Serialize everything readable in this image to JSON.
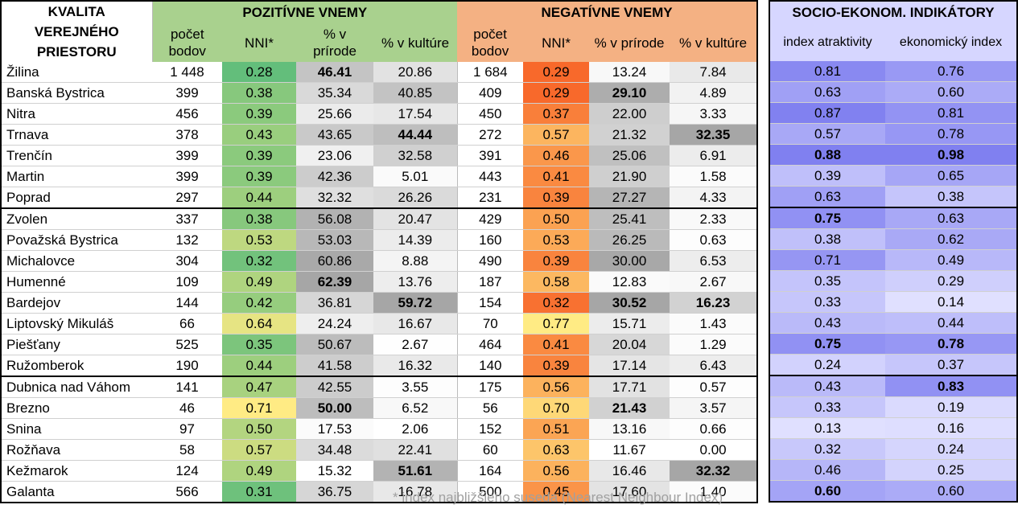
{
  "header": {
    "kvalita": [
      "KVALITA",
      "VEREJNÉHO",
      "PRIESTORU"
    ],
    "positive": "POZITÍVNE VNEMY",
    "negative": "NEGATÍVNE VNEMY",
    "socio": "SOCIO-EKONOM. INDIKÁTORY",
    "sub": {
      "count": [
        "počet",
        "bodov"
      ],
      "nni": "NNI*",
      "nature": [
        "% v",
        "prírode"
      ],
      "culture": "% v kultúre",
      "nature_inline": "% v prírode",
      "attract": "index atraktivity",
      "econ": "ekonomický index"
    }
  },
  "footnote": "* index najbližšieho suseda (Nearest Neighbour Index)",
  "rows": [
    {
      "city": "Žilina",
      "pc": "1 448",
      "pnni": "0.28",
      "pnat": "46.41",
      "pcul": "20.86",
      "nc": "1 684",
      "nnni": "0.29",
      "nnat": "13.24",
      "ncul": "7.84",
      "attr": "0.81",
      "econ": "0.76"
    },
    {
      "city": "Banská Bystrica",
      "pc": "399",
      "pnni": "0.38",
      "pnat": "35.34",
      "pcul": "40.85",
      "nc": "409",
      "nnni": "0.29",
      "nnat": "29.10",
      "ncul": "4.89",
      "attr": "0.63",
      "econ": "0.60"
    },
    {
      "city": "Nitra",
      "pc": "456",
      "pnni": "0.39",
      "pnat": "25.66",
      "pcul": "17.54",
      "nc": "450",
      "nnni": "0.37",
      "nnat": "22.00",
      "ncul": "3.33",
      "attr": "0.87",
      "econ": "0.81"
    },
    {
      "city": "Trnava",
      "pc": "378",
      "pnni": "0.43",
      "pnat": "43.65",
      "pcul": "44.44",
      "nc": "272",
      "nnni": "0.57",
      "nnat": "21.32",
      "ncul": "32.35",
      "attr": "0.57",
      "econ": "0.78"
    },
    {
      "city": "Trenčín",
      "pc": "399",
      "pnni": "0.39",
      "pnat": "23.06",
      "pcul": "32.58",
      "nc": "391",
      "nnni": "0.46",
      "nnat": "25.06",
      "ncul": "6.91",
      "attr": "0.88",
      "econ": "0.98"
    },
    {
      "city": "Martin",
      "pc": "399",
      "pnni": "0.39",
      "pnat": "42.36",
      "pcul": "5.01",
      "nc": "443",
      "nnni": "0.41",
      "nnat": "21.90",
      "ncul": "1.58",
      "attr": "0.39",
      "econ": "0.65"
    },
    {
      "city": "Poprad",
      "pc": "297",
      "pnni": "0.44",
      "pnat": "32.32",
      "pcul": "26.26",
      "nc": "231",
      "nnni": "0.39",
      "nnat": "27.27",
      "ncul": "4.33",
      "attr": "0.63",
      "econ": "0.38"
    },
    {
      "city": "Zvolen",
      "pc": "337",
      "pnni": "0.38",
      "pnat": "56.08",
      "pcul": "20.47",
      "nc": "429",
      "nnni": "0.50",
      "nnat": "25.41",
      "ncul": "2.33",
      "attr": "0.75",
      "econ": "0.63"
    },
    {
      "city": "Považská Bystrica",
      "pc": "132",
      "pnni": "0.53",
      "pnat": "53.03",
      "pcul": "14.39",
      "nc": "160",
      "nnni": "0.53",
      "nnat": "26.25",
      "ncul": "0.63",
      "attr": "0.38",
      "econ": "0.62"
    },
    {
      "city": "Michalovce",
      "pc": "304",
      "pnni": "0.32",
      "pnat": "60.86",
      "pcul": "8.88",
      "nc": "490",
      "nnni": "0.39",
      "nnat": "30.00",
      "ncul": "6.53",
      "attr": "0.71",
      "econ": "0.49"
    },
    {
      "city": "Humenné",
      "pc": "109",
      "pnni": "0.49",
      "pnat": "62.39",
      "pcul": "13.76",
      "nc": "187",
      "nnni": "0.58",
      "nnat": "12.83",
      "ncul": "2.67",
      "attr": "0.35",
      "econ": "0.29"
    },
    {
      "city": "Bardejov",
      "pc": "144",
      "pnni": "0.42",
      "pnat": "36.81",
      "pcul": "59.72",
      "nc": "154",
      "nnni": "0.32",
      "nnat": "30.52",
      "ncul": "16.23",
      "attr": "0.33",
      "econ": "0.14"
    },
    {
      "city": "Liptovský Mikuláš",
      "pc": "66",
      "pnni": "0.64",
      "pnat": "24.24",
      "pcul": "16.67",
      "nc": "70",
      "nnni": "0.77",
      "nnat": "15.71",
      "ncul": "1.43",
      "attr": "0.43",
      "econ": "0.44"
    },
    {
      "city": "Piešťany",
      "pc": "525",
      "pnni": "0.35",
      "pnat": "50.67",
      "pcul": "2.67",
      "nc": "464",
      "nnni": "0.41",
      "nnat": "20.04",
      "ncul": "1.29",
      "attr": "0.75",
      "econ": "0.78"
    },
    {
      "city": "Ružomberok",
      "pc": "190",
      "pnni": "0.44",
      "pnat": "41.58",
      "pcul": "16.32",
      "nc": "140",
      "nnni": "0.39",
      "nnat": "17.14",
      "ncul": "6.43",
      "attr": "0.24",
      "econ": "0.37"
    },
    {
      "city": "Dubnica nad Váhom",
      "pc": "141",
      "pnni": "0.47",
      "pnat": "42.55",
      "pcul": "3.55",
      "nc": "175",
      "nnni": "0.56",
      "nnat": "17.71",
      "ncul": "0.57",
      "attr": "0.43",
      "econ": "0.83"
    },
    {
      "city": "Brezno",
      "pc": "46",
      "pnni": "0.71",
      "pnat": "50.00",
      "pcul": "6.52",
      "nc": "56",
      "nnni": "0.70",
      "nnat": "21.43",
      "ncul": "3.57",
      "attr": "0.33",
      "econ": "0.19"
    },
    {
      "city": "Snina",
      "pc": "97",
      "pnni": "0.50",
      "pnat": "17.53",
      "pcul": "2.06",
      "nc": "152",
      "nnni": "0.51",
      "nnat": "13.16",
      "ncul": "0.66",
      "attr": "0.13",
      "econ": "0.16"
    },
    {
      "city": "Rožňava",
      "pc": "58",
      "pnni": "0.57",
      "pnat": "34.48",
      "pcul": "22.41",
      "nc": "60",
      "nnni": "0.63",
      "nnat": "11.67",
      "ncul": "0.00",
      "attr": "0.32",
      "econ": "0.24"
    },
    {
      "city": "Kežmarok",
      "pc": "124",
      "pnni": "0.49",
      "pnat": "15.32",
      "pcul": "51.61",
      "nc": "164",
      "nnni": "0.56",
      "nnat": "16.46",
      "ncul": "32.32",
      "attr": "0.46",
      "econ": "0.25"
    },
    {
      "city": "Galanta",
      "pc": "566",
      "pnni": "0.31",
      "pnat": "36.75",
      "pcul": "16.78",
      "nc": "500",
      "nnni": "0.45",
      "nnat": "17.60",
      "ncul": "1.40",
      "attr": "0.60",
      "econ": "0.60"
    }
  ],
  "bold_cells": {
    "pnat": [
      0,
      10,
      16
    ],
    "pcul": [
      3,
      11,
      19
    ],
    "nnat": [
      1,
      11,
      16
    ],
    "ncul": [
      3,
      11,
      19
    ],
    "attr": [
      4,
      7,
      13,
      20
    ],
    "econ": [
      4,
      13,
      15
    ]
  },
  "colors": {
    "positive_header": "#a9d18e",
    "negative_header": "#f4b183",
    "socio_header": "#d6d6ff",
    "nni_pos_low": "#63be7b",
    "nni_pos_high": "#ffeb84",
    "nni_neg_low": "#f8692b",
    "nni_neg_high": "#ffeb84",
    "pct_scale_high": "#a6a6a6",
    "socio_scale_low": "#e0e0ff",
    "socio_scale_high": "#8080f0"
  }
}
